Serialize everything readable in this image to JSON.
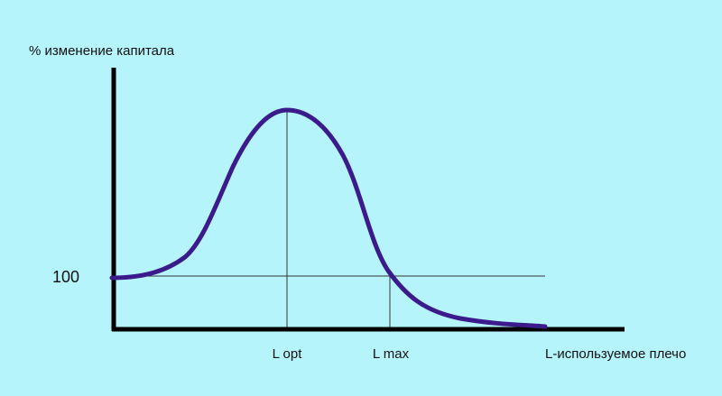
{
  "y_axis_label": "% изменение капитала",
  "x_axis_label": "L-используемое плечо",
  "y_marker": 100,
  "x_markers": [
    "L opt",
    "L max"
  ]
}
